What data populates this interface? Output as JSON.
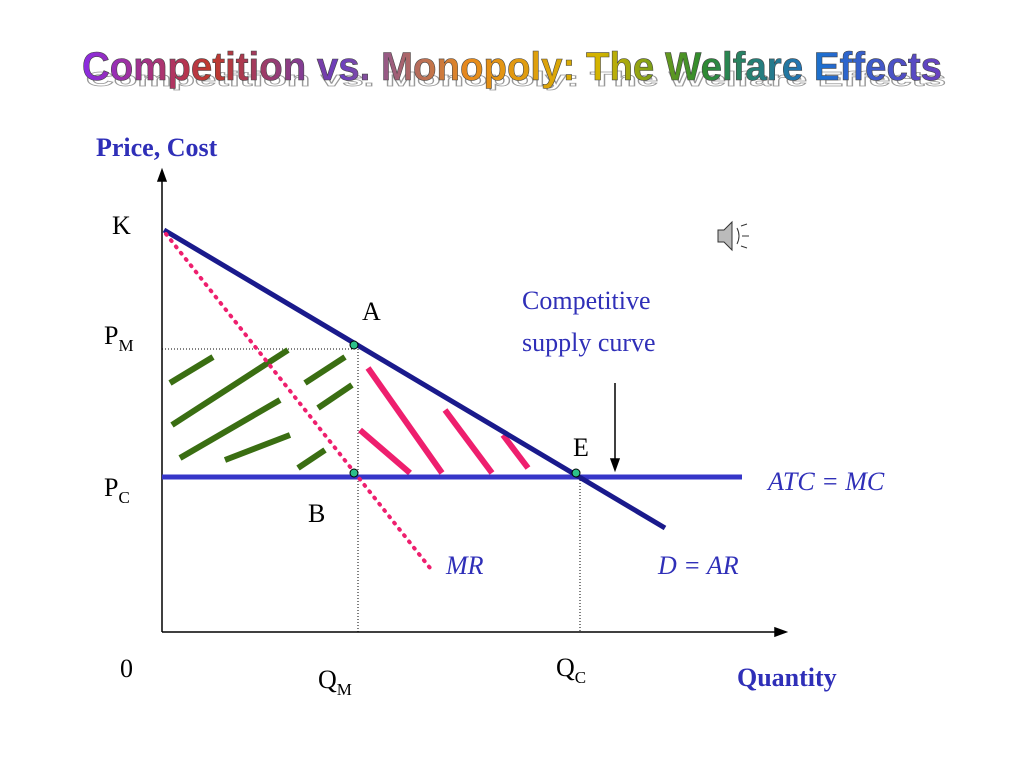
{
  "title": "Competition vs. Monopoly: The Welfare Effects",
  "axes": {
    "y_label": "Price, Cost",
    "x_label": "Quantity",
    "origin": "0"
  },
  "price_labels": {
    "k": "K",
    "pm": {
      "main": "P",
      "sub": "M"
    },
    "pc": {
      "main": "P",
      "sub": "C"
    }
  },
  "quantity_labels": {
    "qm": {
      "main": "Q",
      "sub": "M"
    },
    "qc": {
      "main": "Q",
      "sub": "C"
    }
  },
  "points": {
    "a": "A",
    "b": "B",
    "e": "E"
  },
  "curves": {
    "supply_note": [
      "Competitive",
      "supply curve"
    ],
    "atc_mc": "ATC = MC",
    "mr": "MR",
    "demand": "D = AR"
  }
}
